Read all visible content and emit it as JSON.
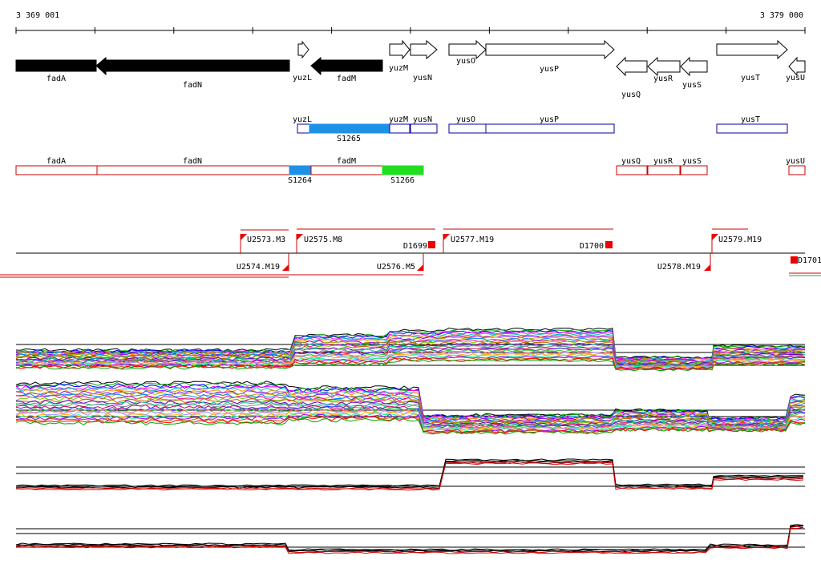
{
  "coordinates": {
    "start": "3 369 001",
    "end": "3 379 000"
  },
  "genes": [
    {
      "name": "fadA",
      "strand": "-",
      "style": "filled"
    },
    {
      "name": "fadN",
      "strand": "-",
      "style": "filled"
    },
    {
      "name": "yuzL",
      "strand": "+",
      "style": "open"
    },
    {
      "name": "fadM",
      "strand": "-",
      "style": "filled"
    },
    {
      "name": "yuzM",
      "strand": "+",
      "style": "open"
    },
    {
      "name": "yusN",
      "strand": "+",
      "style": "open"
    },
    {
      "name": "yusO",
      "strand": "+",
      "style": "open"
    },
    {
      "name": "yusP",
      "strand": "+",
      "style": "open"
    },
    {
      "name": "yusQ",
      "strand": "-",
      "style": "open"
    },
    {
      "name": "yusR",
      "strand": "-",
      "style": "open"
    },
    {
      "name": "yusS",
      "strand": "-",
      "style": "open"
    },
    {
      "name": "yusT",
      "strand": "+",
      "style": "open"
    },
    {
      "name": "yusU",
      "strand": "-",
      "style": "open"
    }
  ],
  "forward_boxes": [
    "yuzL",
    "yuzM",
    "yusN",
    "yusO",
    "yusP",
    "yusT"
  ],
  "reverse_boxes": [
    "fadA",
    "fadN",
    "fadM",
    "yusQ",
    "yusR",
    "yusS",
    "yusU"
  ],
  "segments": [
    {
      "label": "S1265",
      "color": "#1e90e6"
    },
    {
      "label": "S1264",
      "color": "#1e90e6"
    },
    {
      "label": "S1266",
      "color": "#22dd22"
    }
  ],
  "upshifts": [
    "U2573.M3",
    "U2575.M8",
    "U2577.M19",
    "U2579.M19"
  ],
  "downshifts": [
    "U2574.M19",
    "U2576.M5",
    "U2578.M19"
  ],
  "terminators": [
    "D1699",
    "D1700",
    "D1701"
  ],
  "colors": {
    "forward": "#0000aa",
    "reverse": "#cc0000",
    "filled_gene": "#000000"
  }
}
